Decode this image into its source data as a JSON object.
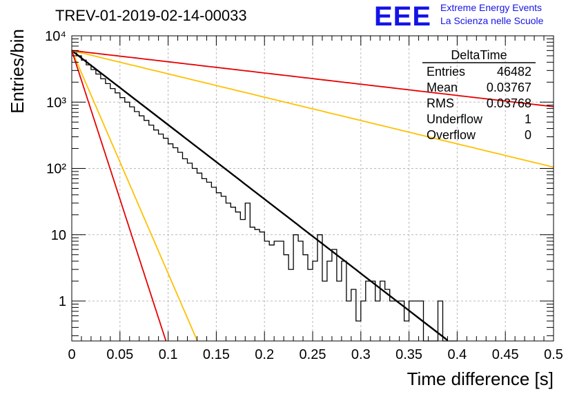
{
  "header": {
    "title": "TREV-01-2019-02-14-00033",
    "logo_text": "EEE",
    "logo_line1": "Extreme Energy Events",
    "logo_line2": "La Scienza nelle Scuole",
    "logo_color": "#1414e6"
  },
  "chart_data": {
    "type": "line",
    "title": "TREV-01-2019-02-14-00033",
    "xlabel": "Time difference [s]",
    "ylabel": "Entries/bin",
    "xlim": [
      0,
      0.5
    ],
    "ylim": [
      0.25,
      10000
    ],
    "y_scale": "log",
    "grid": true,
    "x_ticks": [
      "0",
      "0.05",
      "0.1",
      "0.15",
      "0.2",
      "0.25",
      "0.3",
      "0.35",
      "0.4",
      "0.45",
      "0.5"
    ],
    "y_ticks": [
      {
        "value": 1,
        "label": "1"
      },
      {
        "value": 10,
        "label": "10"
      },
      {
        "value": 100,
        "label": "10²"
      },
      {
        "value": 1000,
        "label": "10³"
      },
      {
        "value": 10000,
        "label": "10⁴"
      }
    ],
    "stats_box": {
      "name": "DeltaTime",
      "rows": [
        {
          "label": "Entries",
          "value": "46482"
        },
        {
          "label": "Mean",
          "value": "0.03767"
        },
        {
          "label": "RMS",
          "value": "0.03768"
        },
        {
          "label": "Underflow",
          "value": "1"
        },
        {
          "label": "Overflow",
          "value": "0"
        }
      ]
    },
    "histogram": {
      "bin_width": 0.005,
      "values": [
        5950,
        5000,
        4300,
        3650,
        3100,
        2650,
        2250,
        1900,
        1600,
        1380,
        1170,
        1000,
        850,
        720,
        620,
        530,
        450,
        380,
        330,
        285,
        235,
        205,
        175,
        140,
        120,
        100,
        85,
        70,
        62,
        52,
        43,
        38,
        30,
        26,
        22,
        17,
        30,
        13,
        12,
        11,
        8,
        7,
        8,
        8,
        5,
        3,
        10,
        8,
        5,
        3,
        4,
        10,
        2,
        4,
        6,
        2,
        4,
        1,
        1.5,
        0.5,
        1,
        2,
        2,
        1,
        2,
        1.5,
        1,
        1,
        1,
        0.5,
        1,
        1,
        1,
        0.1,
        0.1,
        0.1,
        1,
        0.1,
        0.1,
        0.1
      ]
    },
    "series": [
      {
        "color": "#000000",
        "y0": 6000,
        "rate": 25.8,
        "x_end": 0.39
      },
      {
        "color": "#ffc000",
        "y0": 6000,
        "rate": 8.1,
        "x_end": 0.5
      },
      {
        "color": "#e60000",
        "y0": 6000,
        "rate": 3.9,
        "x_end": 0.5
      },
      {
        "color": "#ffc000",
        "y0": 6000,
        "rate": 77.4,
        "x_end": 0.131
      },
      {
        "color": "#e60000",
        "y0": 6000,
        "rate": 103.2,
        "x_end": 0.101
      }
    ]
  }
}
